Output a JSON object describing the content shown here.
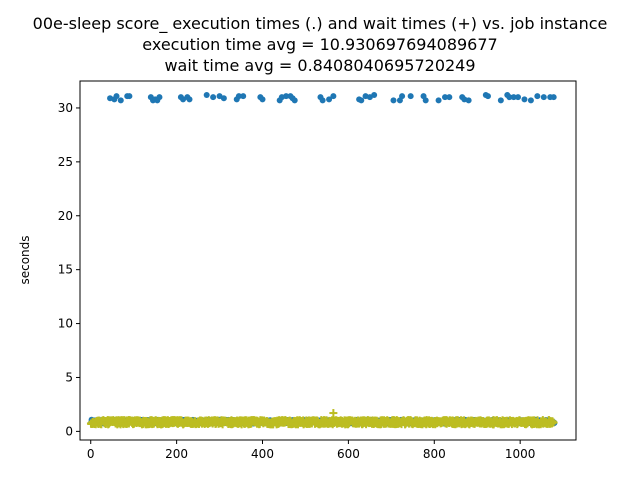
{
  "chart_data": {
    "type": "scatter",
    "title": [
      "00e-sleep score_ execution times (.) and wait times (+) vs. job instance",
      "execution time avg = 10.930697694089677",
      "wait time avg = 0.8408040695720249"
    ],
    "xlabel": "",
    "ylabel": "seconds",
    "xlim": [
      -25,
      1130
    ],
    "ylim": [
      -0.8,
      32.5
    ],
    "xticks": [
      0,
      200,
      400,
      600,
      800,
      1000
    ],
    "yticks": [
      0,
      5,
      10,
      15,
      20,
      25,
      30
    ],
    "grid": false,
    "colors": {
      "execution": "#1f77b4",
      "wait": "#bcbd22"
    },
    "series": [
      {
        "marker": "dot",
        "color": "#1f77b4",
        "high_points": [
          [
            45,
            30.9
          ],
          [
            55,
            30.8
          ],
          [
            60,
            31.1
          ],
          [
            70,
            30.7
          ],
          [
            85,
            31.1
          ],
          [
            90,
            31.1
          ],
          [
            140,
            31.0
          ],
          [
            145,
            30.7
          ],
          [
            150,
            30.8
          ],
          [
            155,
            30.7
          ],
          [
            160,
            31.0
          ],
          [
            210,
            31.0
          ],
          [
            215,
            30.8
          ],
          [
            225,
            31.0
          ],
          [
            230,
            30.8
          ],
          [
            270,
            31.2
          ],
          [
            285,
            31.0
          ],
          [
            300,
            31.1
          ],
          [
            310,
            30.9
          ],
          [
            340,
            30.8
          ],
          [
            345,
            31.1
          ],
          [
            355,
            31.1
          ],
          [
            395,
            31.0
          ],
          [
            400,
            30.8
          ],
          [
            440,
            30.7
          ],
          [
            445,
            31.0
          ],
          [
            455,
            31.1
          ],
          [
            465,
            31.1
          ],
          [
            470,
            30.9
          ],
          [
            475,
            30.7
          ],
          [
            535,
            31.0
          ],
          [
            540,
            30.7
          ],
          [
            555,
            30.8
          ],
          [
            565,
            31.1
          ],
          [
            625,
            30.8
          ],
          [
            630,
            30.7
          ],
          [
            640,
            31.1
          ],
          [
            650,
            31.0
          ],
          [
            660,
            31.2
          ],
          [
            705,
            30.7
          ],
          [
            720,
            30.7
          ],
          [
            725,
            31.1
          ],
          [
            745,
            31.1
          ],
          [
            775,
            31.1
          ],
          [
            780,
            30.7
          ],
          [
            810,
            30.7
          ],
          [
            825,
            31.0
          ],
          [
            835,
            31.0
          ],
          [
            865,
            31.0
          ],
          [
            870,
            30.8
          ],
          [
            880,
            30.7
          ],
          [
            920,
            31.2
          ],
          [
            925,
            31.1
          ],
          [
            955,
            30.7
          ],
          [
            970,
            31.2
          ],
          [
            975,
            31.0
          ],
          [
            985,
            31.0
          ],
          [
            995,
            31.0
          ],
          [
            1010,
            30.8
          ],
          [
            1025,
            30.7
          ],
          [
            1040,
            31.1
          ],
          [
            1055,
            31.0
          ],
          [
            1070,
            31.0
          ],
          [
            1078,
            31.0
          ]
        ],
        "low_baseline": 0.9,
        "low_count": 1000
      },
      {
        "marker": "plus",
        "color": "#bcbd22",
        "baseline": 0.85,
        "count": 1080,
        "outliers": [
          [
            565,
            1.7
          ]
        ]
      }
    ]
  }
}
